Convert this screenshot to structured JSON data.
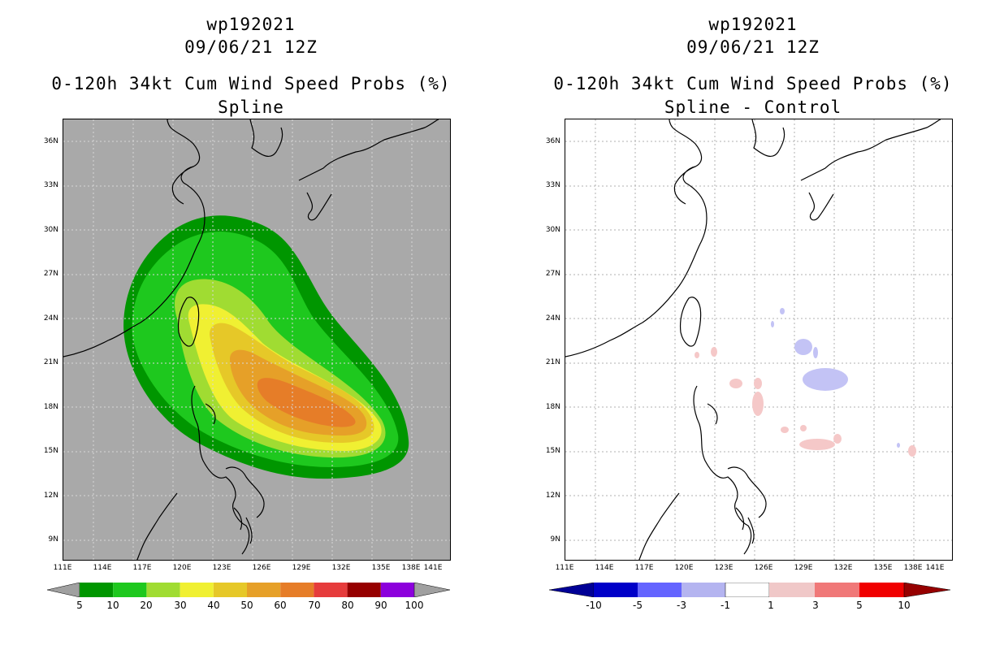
{
  "panels": [
    {
      "storm_id": "wp192021",
      "datetime": "09/06/21 12Z",
      "product": "0-120h 34kt Cum Wind Speed Probs (%)",
      "subtitle": "Spline"
    },
    {
      "storm_id": "wp192021",
      "datetime": "09/06/21 12Z",
      "product": "0-120h 34kt Cum Wind Speed Probs (%)",
      "subtitle": "Spline - Control"
    }
  ],
  "map": {
    "lon_range": [
      111,
      141
    ],
    "lat_range": [
      7.6,
      37.6
    ],
    "lat_ticks": [
      "36N",
      "33N",
      "30N",
      "27N",
      "24N",
      "21N",
      "18N",
      "15N",
      "12N",
      "9N"
    ],
    "lon_ticks": [
      "111E",
      "114E",
      "117E",
      "120E",
      "123E",
      "126E",
      "129E",
      "132E",
      "135E",
      "138E",
      "141E"
    ]
  },
  "colorbars": {
    "left": {
      "labels": [
        "5",
        "10",
        "20",
        "30",
        "40",
        "50",
        "60",
        "70",
        "80",
        "90",
        "100"
      ],
      "colors": [
        "#009600",
        "#1ec81e",
        "#a0dc32",
        "#f0f032",
        "#e6c828",
        "#e6a028",
        "#e67d28",
        "#e63c3c",
        "#960000",
        "#8c00dc"
      ],
      "end_color": "#a0a0a0"
    },
    "right": {
      "labels": [
        "-10",
        "-5",
        "-3",
        "-1",
        "1",
        "3",
        "5",
        "10"
      ],
      "colors": [
        "#0000c8",
        "#6464ff",
        "#b4b4f0",
        "#ffffff",
        "#f0c8c8",
        "#f07878",
        "#f00000"
      ],
      "end_low": "#000096",
      "end_high": "#960000"
    }
  },
  "colors": {
    "map_background_left": "#a9a9a9",
    "land_outline": "#000000"
  }
}
